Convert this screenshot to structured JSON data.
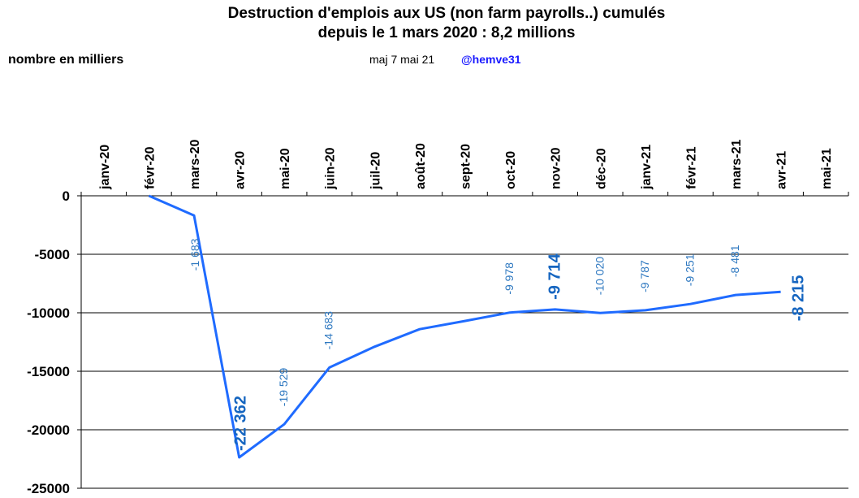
{
  "chart_data": {
    "type": "line",
    "title": [
      "Destruction d'emplois aux US (non farm payrolls..) cumulés",
      "depuis le 1  mars 2020 : 8,2  millions"
    ],
    "subtitle": "nombre en milliers",
    "note": "maj 7 mai 21",
    "author": "@hemve31",
    "categories": [
      "janv-20",
      "févr-20",
      "mars-20",
      "avr-20",
      "mai-20",
      "juin-20",
      "juil-20",
      "août-20",
      "sept-20",
      "oct-20",
      "nov-20",
      "déc-20",
      "janv-21",
      "févr-21",
      "mars-21",
      "avr-21",
      "mai-21"
    ],
    "values": [
      null,
      0,
      -1683,
      -22362,
      -19529,
      -14683,
      -12900,
      -11400,
      -10700,
      -9978,
      -9714,
      -10020,
      -9787,
      -9251,
      -8481,
      -8215,
      null
    ],
    "value_labels": [
      null,
      null,
      "-1 683",
      "-22 362",
      "-19 529",
      "-14 683",
      null,
      null,
      null,
      "-9 978",
      "-9 714",
      "-10 020",
      "-9 787",
      "-9 251",
      "-8 481",
      "-8 215",
      null
    ],
    "emphasized_labels": [
      3,
      10,
      15
    ],
    "color": "#1f6bff",
    "label_color": "#2e78c0",
    "ylim": [
      -25000,
      0
    ],
    "yticks": [
      0,
      -5000,
      -10000,
      -15000,
      -20000,
      -25000
    ],
    "grid": true
  }
}
